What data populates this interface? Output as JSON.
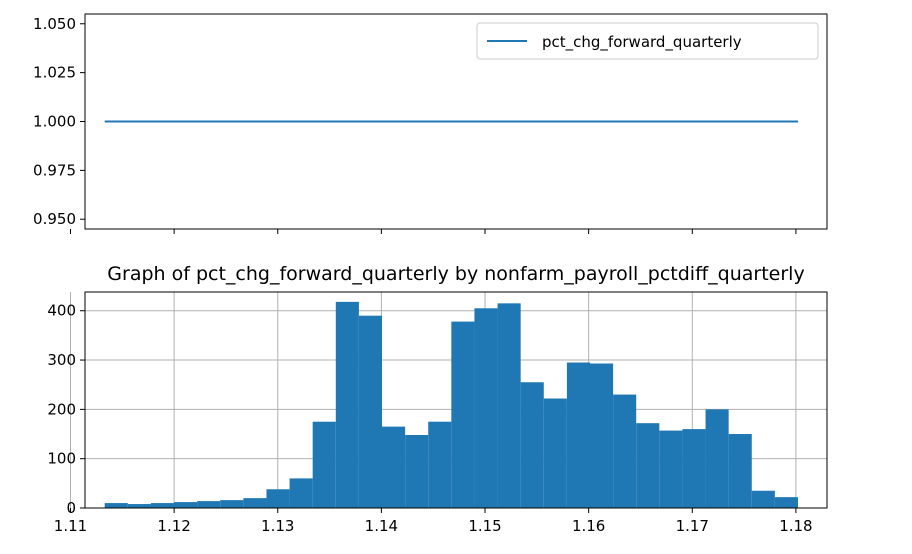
{
  "chart_data": [
    {
      "type": "line",
      "title": "",
      "xlabel": "",
      "ylabel": "",
      "grid": false,
      "legend_position": "upper right",
      "xlim": [
        1.1114,
        1.183
      ],
      "ylim": [
        0.945,
        1.055
      ],
      "x_ticks": [
        1.11,
        1.12,
        1.13,
        1.14,
        1.15,
        1.16,
        1.17,
        1.18
      ],
      "x_ticklabels_visible": false,
      "y_ticks": [
        0.95,
        0.975,
        1.0,
        1.025,
        1.05
      ],
      "y_ticklabels": [
        "0.950",
        "0.975",
        "1.000",
        "1.025",
        "1.050"
      ],
      "series": [
        {
          "name": "pct_chg_forward_quarterly",
          "color": "#1f77b4",
          "x": [
            1.1133,
            1.1802
          ],
          "y": [
            1.0,
            1.0
          ]
        }
      ]
    },
    {
      "type": "bar",
      "subtype": "histogram",
      "title": "Graph of pct_chg_forward_quarterly by nonfarm_payroll_pctdiff_quarterly",
      "xlabel": "",
      "ylabel": "",
      "grid": true,
      "color": "#1f77b4",
      "xlim": [
        1.1114,
        1.183
      ],
      "ylim": [
        0,
        438
      ],
      "x_ticks": [
        1.11,
        1.12,
        1.13,
        1.14,
        1.15,
        1.16,
        1.17,
        1.18
      ],
      "x_ticklabels": [
        "1.11",
        "1.12",
        "1.13",
        "1.14",
        "1.15",
        "1.16",
        "1.17",
        "1.18"
      ],
      "y_ticks": [
        0,
        100,
        200,
        300,
        400
      ],
      "y_ticklabels": [
        "0",
        "100",
        "200",
        "300",
        "400"
      ],
      "bin_start": 1.1133,
      "bin_width": 0.00223,
      "values": [
        10,
        8,
        10,
        12,
        14,
        16,
        20,
        38,
        60,
        175,
        418,
        390,
        165,
        148,
        175,
        378,
        405,
        415,
        255,
        222,
        295,
        293,
        230,
        172,
        157,
        160,
        200,
        150,
        35,
        22
      ]
    }
  ]
}
